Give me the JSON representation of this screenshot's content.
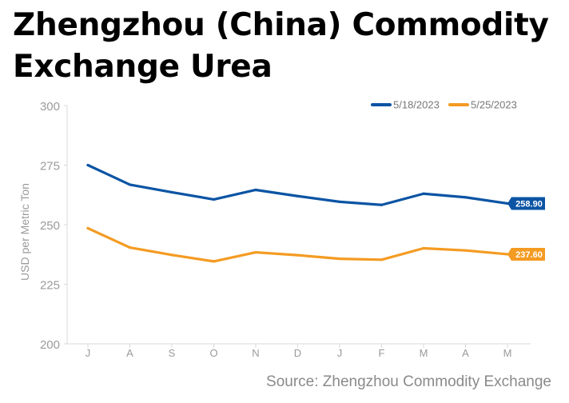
{
  "title": "Zhengzhou (China) Commodity Exchange Urea",
  "source": "Source: Zhengzhou Commodity Exchange",
  "chart_data": {
    "type": "line",
    "title": "Zhengzhou (China) Commodity Exchange Urea",
    "xlabel": "",
    "ylabel": "USD per Metric Ton",
    "categories": [
      "J",
      "A",
      "S",
      "O",
      "N",
      "D",
      "J",
      "F",
      "M",
      "A",
      "M"
    ],
    "ylim": [
      200,
      300
    ],
    "yticks": [
      200,
      225,
      250,
      275,
      300
    ],
    "ytick_labels": [
      "200",
      "225",
      "250",
      "275",
      "300"
    ],
    "grid": false,
    "legend_position": "top-right",
    "series": [
      {
        "name": "5/18/2023",
        "color": "#0b54a4",
        "values": [
          275.0,
          266.8,
          263.6,
          260.6,
          264.6,
          262.0,
          259.6,
          258.3,
          263.0,
          261.5,
          258.9
        ],
        "end_label": "258.90"
      },
      {
        "name": "5/25/2023",
        "color": "#f49b22",
        "values": [
          248.5,
          240.4,
          237.3,
          234.6,
          238.4,
          237.2,
          235.7,
          235.3,
          240.1,
          239.2,
          237.6
        ],
        "end_label": "237.60"
      }
    ]
  }
}
